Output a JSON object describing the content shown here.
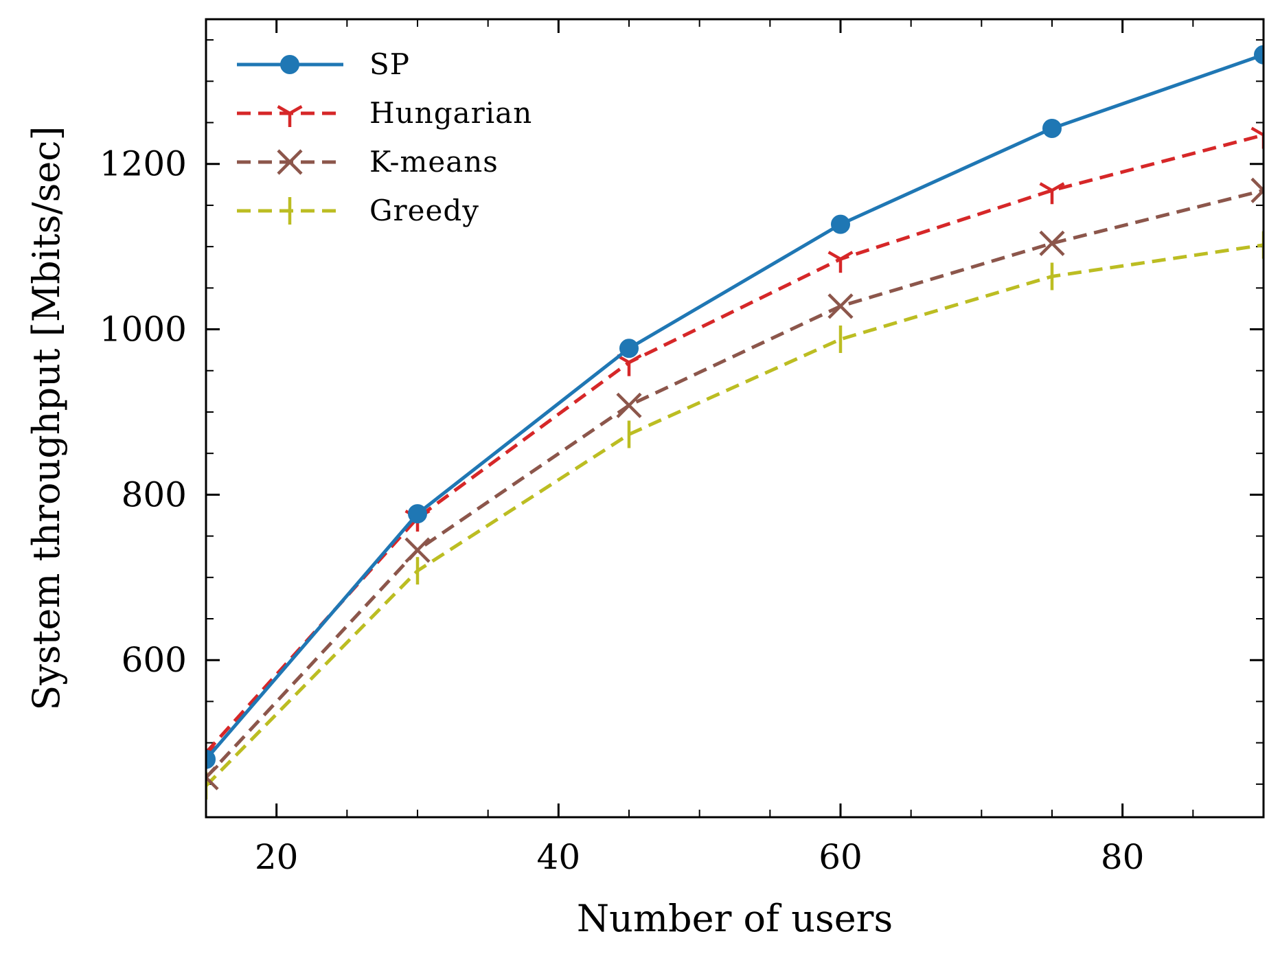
{
  "chart_data": {
    "type": "line",
    "title": "",
    "xlabel": "Number of users",
    "ylabel": "System throughput [Mbits/sec]",
    "xlim": [
      15,
      90
    ],
    "ylim": [
      410,
      1375
    ],
    "x": [
      15,
      30,
      45,
      60,
      75,
      90
    ],
    "x_ticks": [
      20,
      40,
      60,
      80
    ],
    "x_tick_labels": [
      "20",
      "40",
      "60",
      "80"
    ],
    "y_ticks": [
      600,
      800,
      1000,
      1200
    ],
    "y_tick_labels": [
      "600",
      "800",
      "1000",
      "1200"
    ],
    "grid": false,
    "legend_position": "top-left",
    "series": [
      {
        "name": "SP",
        "values": [
          480,
          777,
          977,
          1127,
          1243,
          1332
        ],
        "color": "#1f77b4",
        "dash": "solid",
        "marker": "circle"
      },
      {
        "name": "Hungarian",
        "values": [
          488,
          772,
          960,
          1085,
          1168,
          1235
        ],
        "color": "#d62728",
        "dash": "dashed",
        "marker": "tri-down"
      },
      {
        "name": "K-means",
        "values": [
          458,
          733,
          908,
          1028,
          1104,
          1168
        ],
        "color": "#8c564b",
        "dash": "dashed",
        "marker": "x"
      },
      {
        "name": "Greedy",
        "values": [
          448,
          708,
          873,
          988,
          1064,
          1102
        ],
        "color": "#bcbd22",
        "dash": "dashed",
        "marker": "vline"
      }
    ]
  }
}
